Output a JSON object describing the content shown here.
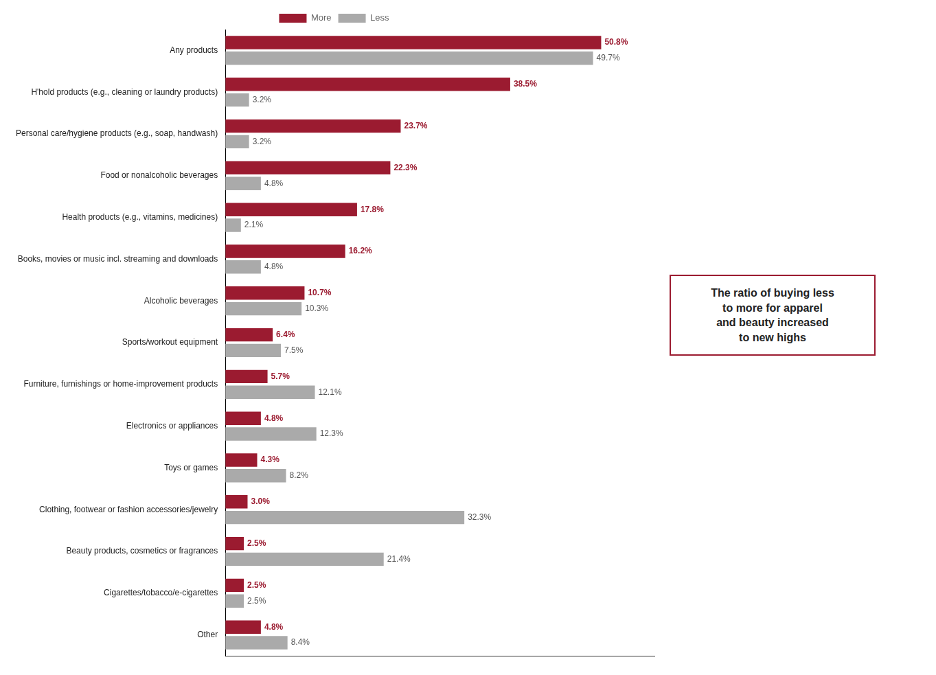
{
  "chart_data": {
    "type": "bar",
    "orientation": "horizontal",
    "categories": [
      "Any products",
      "H'hold products (e.g., cleaning or laundry products)",
      "Personal care/hygiene products (e.g., soap, handwash)",
      "Food or nonalcoholic beverages",
      "Health products (e.g., vitamins, medicines)",
      "Books, movies or music incl. streaming and downloads",
      "Alcoholic beverages",
      "Sports/workout equipment",
      "Furniture, furnishings or home-improvement products",
      "Electronics or appliances",
      "Toys or games",
      "Clothing, footwear or fashion accessories/jewelry",
      "Beauty products, cosmetics or fragrances",
      "Cigarettes/tobacco/e-cigarettes",
      "Other"
    ],
    "series": [
      {
        "name": "More",
        "color": "#9B1B30",
        "values": [
          50.8,
          38.5,
          23.7,
          22.3,
          17.8,
          16.2,
          10.7,
          6.4,
          5.7,
          4.8,
          4.3,
          3.0,
          2.5,
          2.5,
          4.8
        ],
        "value_labels": [
          "50.8%",
          "38.5%",
          "23.7%",
          "22.3%",
          "17.8%",
          "16.2%",
          "10.7%",
          "6.4%",
          "5.7%",
          "4.8%",
          "4.3%",
          "3.0%",
          "2.5%",
          "2.5%",
          "4.8%"
        ]
      },
      {
        "name": "Less",
        "color": "#AAAAAA",
        "values": [
          49.7,
          3.2,
          3.2,
          4.8,
          2.1,
          4.8,
          10.3,
          7.5,
          12.1,
          12.3,
          8.2,
          32.3,
          21.4,
          2.5,
          8.4
        ],
        "value_labels": [
          "49.7%",
          "3.2%",
          "3.2%",
          "4.8%",
          "2.1%",
          "4.8%",
          "10.3%",
          "7.5%",
          "12.1%",
          "12.3%",
          "8.2%",
          "32.3%",
          "21.4%",
          "2.5%",
          "8.4%"
        ]
      }
    ],
    "xlim": [
      0,
      58
    ],
    "xticks": [],
    "tick_labels": "y",
    "grid": false,
    "legend": "top",
    "data_labels": true,
    "annotation": "The ratio of buying less\nto more for apparel\nand beauty increased\nto new highs"
  }
}
